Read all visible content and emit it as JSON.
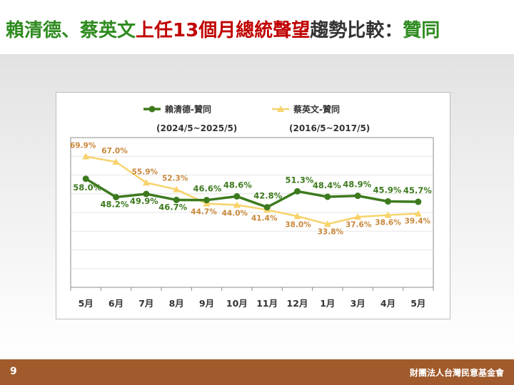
{
  "title": {
    "part1": "賴清德、蔡英文",
    "part2": "上任13個月總統聲望",
    "part3": "趨勢比較：",
    "part4": "贊同",
    "colors": {
      "green": "#2e8b1f",
      "red": "#c00000",
      "dark": "#333333"
    }
  },
  "footer": {
    "page_number": "9",
    "organization": "財團法人台灣民意基金會"
  },
  "chart_data": {
    "type": "line",
    "categories": [
      "5月",
      "6月",
      "7月",
      "8月",
      "9月",
      "10月",
      "11月",
      "12月",
      "1月",
      "3月",
      "4月",
      "5月"
    ],
    "series": [
      {
        "name": "賴清德-贊同",
        "period": "(2024/5~2025/5)",
        "color": "#3d7a1e",
        "marker": "circle",
        "values": [
          58.0,
          48.2,
          49.9,
          46.7,
          46.6,
          48.6,
          42.8,
          51.3,
          48.4,
          48.9,
          45.9,
          45.7
        ],
        "labels": [
          "58.0%",
          "48.2%",
          "49.9%",
          "46.7%",
          "46.6%",
          "48.6%",
          "42.8%",
          "51.3%",
          "48.4%",
          "48.9%",
          "45.9%",
          "45.7%"
        ]
      },
      {
        "name": "蔡英文-贊同",
        "period": "(2016/5~2017/5)",
        "color": "#f7d36b",
        "marker": "triangle",
        "label_color": "#c8873a",
        "values": [
          69.9,
          67.0,
          55.9,
          52.3,
          44.7,
          44.0,
          41.4,
          38.0,
          33.8,
          37.6,
          38.6,
          39.4
        ],
        "labels": [
          "69.9%",
          "67.0%",
          "55.9%",
          "52.3%",
          "44.7%",
          "44.0%",
          "41.4%",
          "38.0%",
          "33.8%",
          "37.6%",
          "38.6%",
          "39.4%"
        ]
      }
    ],
    "ylim": [
      0,
      80
    ],
    "grid": true,
    "legend_position": "top"
  }
}
